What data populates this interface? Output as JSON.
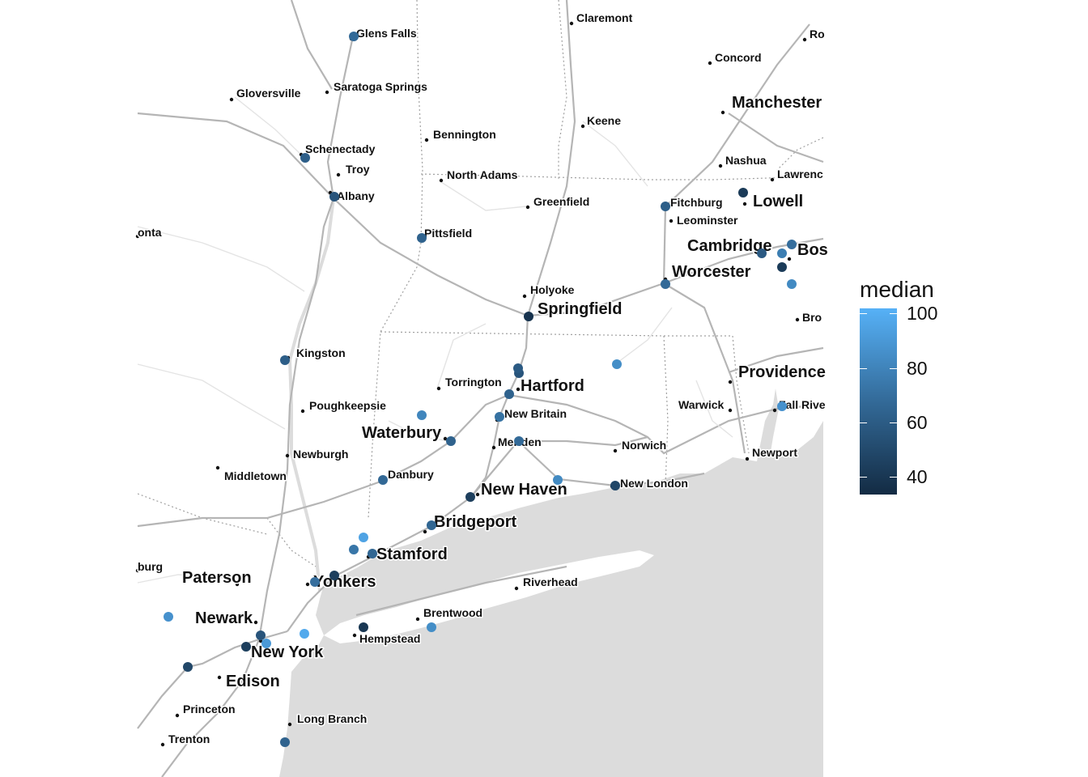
{
  "legend": {
    "title": "median",
    "ticks": [
      "100",
      "80",
      "60",
      "40"
    ],
    "color_low": "#132b43",
    "color_high": "#56b1f7",
    "range": [
      34,
      102
    ]
  },
  "map": {
    "land_color": "#ffffff",
    "water_color": "#dcdcdc",
    "road_color": "#b5b5b5",
    "border_color": "#a0a0a0"
  },
  "cities": [
    {
      "name": "Glens Falls",
      "size": "small"
    },
    {
      "name": "Claremont",
      "size": "small"
    },
    {
      "name": "Ro",
      "size": "small"
    },
    {
      "name": "Concord",
      "size": "small"
    },
    {
      "name": "Gloversville",
      "size": "small"
    },
    {
      "name": "Saratoga Springs",
      "size": "small"
    },
    {
      "name": "Manchester",
      "size": "large"
    },
    {
      "name": "Keene",
      "size": "small"
    },
    {
      "name": "Bennington",
      "size": "small"
    },
    {
      "name": "Schenectady",
      "size": "small"
    },
    {
      "name": "Troy",
      "size": "small"
    },
    {
      "name": "Nashua",
      "size": "small"
    },
    {
      "name": "North Adams",
      "size": "small"
    },
    {
      "name": "Lawrenc",
      "size": "small"
    },
    {
      "name": "Albany",
      "size": "small"
    },
    {
      "name": "Greenfield",
      "size": "small"
    },
    {
      "name": "Fitchburg",
      "size": "small"
    },
    {
      "name": "Lowell",
      "size": "large"
    },
    {
      "name": "Leominster",
      "size": "small"
    },
    {
      "name": "onta",
      "size": "small"
    },
    {
      "name": "Pittsfield",
      "size": "small"
    },
    {
      "name": "Cambridge",
      "size": "large"
    },
    {
      "name": "Bos",
      "size": "large"
    },
    {
      "name": "Worcester",
      "size": "large"
    },
    {
      "name": "Holyoke",
      "size": "small"
    },
    {
      "name": "Springfield",
      "size": "large"
    },
    {
      "name": "Bro",
      "size": "small"
    },
    {
      "name": "Kingston",
      "size": "small"
    },
    {
      "name": "Providence",
      "size": "large"
    },
    {
      "name": "Torrington",
      "size": "small"
    },
    {
      "name": "Hartford",
      "size": "large"
    },
    {
      "name": "Poughkeepsie",
      "size": "small"
    },
    {
      "name": "Warwick",
      "size": "small"
    },
    {
      "name": "Fall Rive",
      "size": "small"
    },
    {
      "name": "New Britain",
      "size": "small"
    },
    {
      "name": "Waterbury",
      "size": "large"
    },
    {
      "name": "Meriden",
      "size": "small"
    },
    {
      "name": "Norwich",
      "size": "small"
    },
    {
      "name": "Newburgh",
      "size": "small"
    },
    {
      "name": "Newport",
      "size": "small"
    },
    {
      "name": "Middletown",
      "size": "small"
    },
    {
      "name": "Danbury",
      "size": "small"
    },
    {
      "name": "New London",
      "size": "small"
    },
    {
      "name": "New Haven",
      "size": "large"
    },
    {
      "name": "Bridgeport",
      "size": "large"
    },
    {
      "name": "Stamford",
      "size": "large"
    },
    {
      "name": "burg",
      "size": "small"
    },
    {
      "name": "Paterson",
      "size": "large"
    },
    {
      "name": "Yonkers",
      "size": "large"
    },
    {
      "name": "Riverhead",
      "size": "small"
    },
    {
      "name": "Brentwood",
      "size": "small"
    },
    {
      "name": "Newark",
      "size": "large"
    },
    {
      "name": "Hempstead",
      "size": "small"
    },
    {
      "name": "New York",
      "size": "large"
    },
    {
      "name": "Edison",
      "size": "large"
    },
    {
      "name": "Princeton",
      "size": "small"
    },
    {
      "name": "Long Branch",
      "size": "small"
    },
    {
      "name": "Trenton",
      "size": "small"
    }
  ],
  "points": [
    {
      "median": 66
    },
    {
      "median": 60
    },
    {
      "median": 55
    },
    {
      "median": 62
    },
    {
      "median": 38
    },
    {
      "median": 84
    },
    {
      "median": 55
    },
    {
      "median": 62
    },
    {
      "median": 70
    },
    {
      "median": 66
    },
    {
      "median": 80
    },
    {
      "median": 62
    },
    {
      "median": 65
    },
    {
      "median": 44
    },
    {
      "median": 48
    },
    {
      "median": 60
    },
    {
      "median": 42
    },
    {
      "median": 66
    },
    {
      "median": 82
    },
    {
      "median": 76
    },
    {
      "median": 58
    },
    {
      "median": 68
    },
    {
      "median": 82
    },
    {
      "median": 64
    },
    {
      "median": 64
    },
    {
      "median": 72
    },
    {
      "median": 95
    },
    {
      "median": 98
    },
    {
      "median": 90
    },
    {
      "median": 55
    },
    {
      "median": 44
    },
    {
      "median": 86
    },
    {
      "median": 48
    },
    {
      "median": 62
    },
    {
      "median": 44
    },
    {
      "median": 68
    },
    {
      "median": 84
    },
    {
      "median": 40
    },
    {
      "median": 42
    },
    {
      "median": 60
    },
    {
      "median": 58
    },
    {
      "median": 86
    }
  ]
}
